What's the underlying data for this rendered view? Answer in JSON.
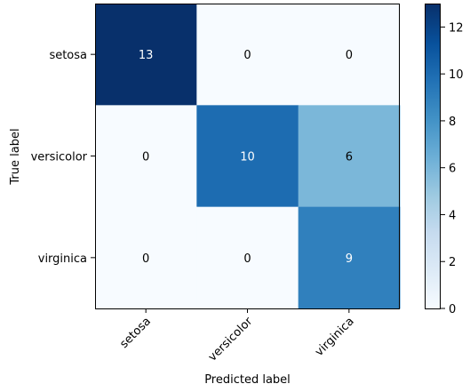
{
  "chart_data": {
    "type": "heatmap",
    "title": "",
    "x_categories": [
      "setosa",
      "versicolor",
      "virginica"
    ],
    "y_categories": [
      "setosa",
      "versicolor",
      "virginica"
    ],
    "values": [
      [
        13,
        0,
        0
      ],
      [
        0,
        10,
        6
      ],
      [
        0,
        0,
        9
      ]
    ],
    "xlabel": "Predicted label",
    "ylabel": "True label",
    "colorbar": {
      "min": 0,
      "max": 13,
      "ticks": [
        0,
        2,
        4,
        6,
        8,
        10,
        12
      ]
    },
    "colormap": {
      "name": "Blues",
      "low": "#f7fbff",
      "high": "#08306b"
    },
    "cell_text_colors": {
      "light": "#ffffff",
      "dark": "#000000"
    },
    "grid": false
  }
}
